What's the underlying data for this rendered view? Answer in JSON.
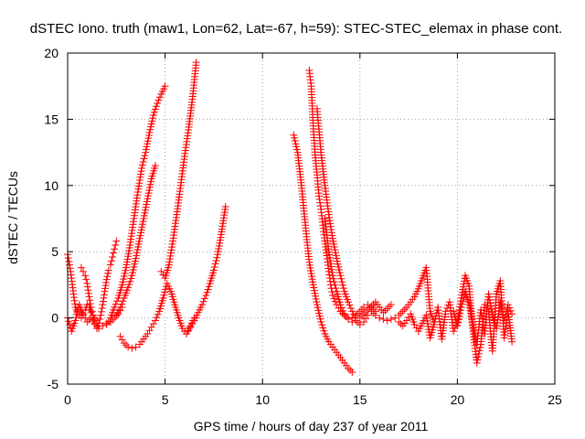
{
  "chart_data": {
    "type": "scatter",
    "title": "dSTEC Iono. truth (maw1, Lon=62, Lat=-67, h=59): STEC-STEC_elemax in phase cont.",
    "xlabel": "GPS time / hours of day 237 of year 2011",
    "ylabel": "dSTEC  / TECUs",
    "xlim": [
      0,
      25
    ],
    "ylim": [
      -5,
      20
    ],
    "xticks": [
      0,
      5,
      10,
      15,
      20,
      25
    ],
    "yticks": [
      -5,
      0,
      5,
      10,
      15,
      20
    ],
    "grid": true,
    "marker": "+",
    "series_color": "#ff0000",
    "arcs": [
      {
        "x": [
          0.0,
          0.1,
          0.2,
          0.3,
          0.4,
          0.5,
          0.6,
          0.7,
          0.8,
          0.9,
          1.0,
          1.1,
          1.2,
          1.3,
          1.4,
          1.5
        ],
        "y": [
          4.8,
          4.0,
          3.0,
          1.8,
          0.8,
          0.4,
          0.2,
          0.0,
          0.3,
          0.6,
          1.0,
          0.8,
          0.4,
          0.2,
          0.0,
          -0.2
        ]
      },
      {
        "x": [
          0.0,
          0.1,
          0.2,
          0.3,
          0.4,
          0.5,
          0.6,
          0.7,
          0.8,
          0.9,
          1.0,
          1.2,
          1.4,
          1.6,
          1.8,
          2.0,
          2.2,
          2.4,
          2.6,
          2.8
        ],
        "y": [
          0.0,
          -0.5,
          -1.0,
          -0.6,
          -0.2,
          0.5,
          1.0,
          0.6,
          0.2,
          0.0,
          -0.3,
          0.0,
          -0.5,
          -0.8,
          -0.6,
          -0.4,
          -0.3,
          0.0,
          0.3,
          0.8
        ]
      },
      {
        "x": [
          0.7,
          0.8,
          0.9,
          1.0,
          1.1,
          1.2,
          1.3,
          1.4
        ],
        "y": [
          3.8,
          3.5,
          3.2,
          2.6,
          1.6,
          0.8,
          0.2,
          -0.4
        ]
      },
      {
        "x": [
          1.5,
          1.6,
          1.7,
          1.8,
          1.9,
          2.0,
          2.1
        ],
        "y": [
          -0.8,
          -0.4,
          0.2,
          1.0,
          2.0,
          2.9,
          3.6
        ]
      },
      {
        "x": [
          2.2,
          2.3,
          2.4,
          2.5
        ],
        "y": [
          4.0,
          4.6,
          5.2,
          5.8
        ]
      },
      {
        "x": [
          2.0,
          2.2,
          2.4,
          2.6,
          2.8,
          3.0,
          3.2,
          3.4,
          3.6,
          3.8,
          4.0,
          4.2,
          4.4,
          4.6,
          4.8,
          5.0
        ],
        "y": [
          -0.5,
          0.0,
          0.8,
          1.5,
          2.5,
          3.8,
          5.5,
          7.5,
          9.5,
          11.3,
          12.5,
          14.0,
          15.3,
          16.2,
          16.9,
          17.5
        ]
      },
      {
        "x": [
          2.5,
          2.7,
          2.9,
          3.1,
          3.3,
          3.5,
          3.7,
          3.9,
          4.1,
          4.3,
          4.5
        ],
        "y": [
          0.2,
          0.8,
          1.5,
          2.3,
          3.2,
          4.5,
          6.0,
          7.5,
          9.0,
          10.5,
          11.5
        ]
      },
      {
        "x": [
          2.7,
          2.9,
          3.1,
          3.3,
          3.5,
          3.7,
          3.9,
          4.1,
          4.3,
          4.5,
          4.7,
          4.9,
          5.1,
          5.3,
          5.5,
          5.7,
          5.9,
          6.1,
          6.3,
          6.5
        ],
        "y": [
          -1.4,
          -1.9,
          -2.2,
          -2.3,
          -2.2,
          -2.0,
          -1.6,
          -1.2,
          -0.7,
          -0.2,
          0.5,
          1.5,
          2.6,
          2.0,
          1.0,
          0.0,
          -0.8,
          -1.2,
          -0.6,
          0.0
        ]
      },
      {
        "x": [
          4.8,
          5.0,
          5.2,
          5.4,
          5.6,
          5.8,
          6.0,
          6.2,
          6.4,
          6.6
        ],
        "y": [
          3.5,
          3.0,
          4.0,
          5.8,
          7.8,
          10.0,
          12.2,
          14.2,
          16.5,
          19.3
        ]
      },
      {
        "x": [
          6.1,
          6.3,
          6.5,
          6.7,
          6.9,
          7.1,
          7.3,
          7.5,
          7.7,
          7.9,
          8.1
        ],
        "y": [
          -1.2,
          -0.7,
          -0.2,
          0.4,
          1.0,
          1.7,
          2.6,
          3.6,
          4.8,
          6.5,
          8.4
        ]
      },
      {
        "x": [
          11.6,
          11.8,
          12.0,
          12.2,
          12.4,
          12.6,
          12.8,
          13.0,
          13.2,
          13.4,
          13.6,
          13.8,
          14.0,
          14.2,
          14.4,
          14.6
        ],
        "y": [
          13.8,
          12.5,
          10.0,
          7.0,
          4.2,
          2.5,
          1.0,
          -0.3,
          -1.2,
          -1.8,
          -2.2,
          -2.6,
          -3.0,
          -3.4,
          -3.8,
          -4.1
        ]
      },
      {
        "x": [
          12.4,
          12.5,
          12.6,
          12.7,
          12.8,
          12.9,
          13.0,
          13.1,
          13.2,
          13.3,
          13.4,
          13.5,
          13.6,
          13.8,
          14.0,
          14.2,
          14.4,
          14.6,
          14.8,
          15.0,
          15.2,
          15.4,
          15.6,
          15.8
        ],
        "y": [
          18.7,
          17.5,
          14.5,
          12.3,
          10.8,
          9.2,
          8.2,
          7.0,
          5.8,
          4.7,
          3.5,
          2.5,
          1.7,
          1.0,
          0.5,
          0.2,
          0.0,
          0.0,
          0.2,
          0.5,
          0.8,
          1.0,
          0.8,
          0.5
        ]
      },
      {
        "x": [
          12.8,
          13.0,
          13.2,
          13.4,
          13.6,
          13.8,
          14.0,
          14.2,
          14.4,
          14.6,
          14.8,
          15.0,
          15.2,
          15.4
        ],
        "y": [
          15.8,
          12.5,
          10.0,
          7.8,
          6.0,
          4.5,
          3.2,
          2.0,
          1.2,
          0.5,
          -0.2,
          -0.5,
          -0.3,
          0.2
        ]
      },
      {
        "x": [
          13.2,
          13.4,
          13.6,
          13.8,
          14.0,
          14.2,
          14.4,
          14.6,
          14.8,
          15.0,
          15.2,
          15.4,
          15.6,
          15.8,
          16.0,
          16.2,
          16.4,
          16.6
        ],
        "y": [
          7.5,
          5.0,
          3.2,
          2.0,
          1.0,
          0.3,
          -0.1,
          -0.3,
          -0.2,
          0.0,
          0.3,
          0.6,
          0.9,
          1.2,
          0.8,
          0.4,
          0.7,
          1.0
        ]
      },
      {
        "x": [
          15.6,
          15.8,
          16.0,
          16.2,
          16.4,
          16.6,
          16.8,
          17.0,
          17.2,
          17.4,
          17.6,
          17.8,
          18.0,
          18.2,
          18.4,
          18.6,
          18.8
        ],
        "y": [
          0.5,
          0.2,
          0.0,
          -0.1,
          -0.2,
          -0.1,
          0.0,
          0.2,
          0.5,
          0.8,
          1.2,
          1.6,
          2.2,
          3.0,
          3.8,
          0.5,
          -0.3
        ]
      },
      {
        "x": [
          17.0,
          17.2,
          17.4,
          17.6,
          17.8,
          18.0,
          18.2,
          18.4,
          18.6,
          18.8,
          19.0,
          19.2,
          19.4,
          19.6,
          19.8,
          20.0,
          20.2,
          20.4,
          20.6,
          20.8,
          21.0,
          21.2,
          21.4,
          21.6,
          21.8,
          22.0,
          22.2,
          22.4,
          22.6,
          22.8
        ],
        "y": [
          -0.3,
          -0.6,
          -0.2,
          0.3,
          -0.5,
          -1.0,
          -0.4,
          0.2,
          -1.5,
          -0.5,
          0.8,
          -1.6,
          0.5,
          1.2,
          -1.0,
          -0.3,
          1.5,
          3.2,
          2.4,
          -1.0,
          -3.4,
          -2.0,
          1.0,
          0.5,
          -2.5,
          1.8,
          2.8,
          -1.5,
          0.5,
          -1.8
        ]
      },
      {
        "x": [
          19.8,
          20.0,
          20.2,
          20.4,
          20.6,
          20.8,
          21.0,
          21.2,
          21.4,
          21.6,
          21.8,
          22.0,
          22.2,
          22.4,
          22.6,
          22.8
        ],
        "y": [
          0.5,
          -0.6,
          0.8,
          2.0,
          1.0,
          -0.5,
          -2.0,
          0.6,
          -1.2,
          1.8,
          0.2,
          -0.8,
          1.2,
          -0.2,
          1.0,
          0.3
        ]
      }
    ]
  }
}
